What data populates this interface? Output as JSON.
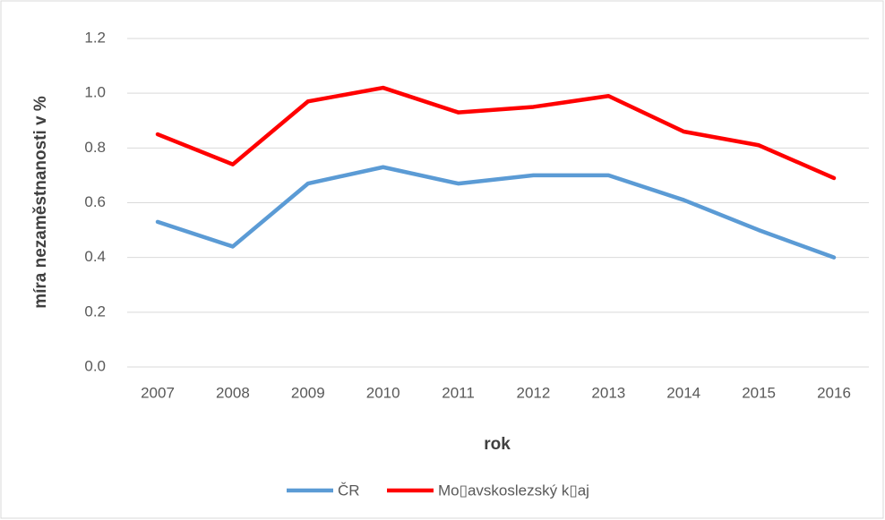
{
  "chart_data": {
    "type": "line",
    "categories": [
      "2007",
      "2008",
      "2009",
      "2010",
      "2011",
      "2012",
      "2013",
      "2014",
      "2015",
      "2016"
    ],
    "series": [
      {
        "name": "ČR",
        "color": "#5b9bd5",
        "values": [
          0.53,
          0.44,
          0.67,
          0.73,
          0.67,
          0.7,
          0.7,
          0.61,
          0.5,
          0.4
        ]
      },
      {
        "name": "Mo▯avskoslezský k▯aj",
        "color": "#ff0000",
        "values": [
          0.85,
          0.74,
          0.97,
          1.02,
          0.93,
          0.95,
          0.99,
          0.86,
          0.81,
          0.69
        ]
      }
    ],
    "xlabel": "rok",
    "ylabel": "míra nezaměstnanosti v %",
    "ylim": [
      0,
      1.2
    ],
    "yticks": [
      {
        "value": 0,
        "label": "0.0"
      },
      0.2,
      0.4,
      0.6,
      0.8,
      {
        "value": 1,
        "label": "1.0"
      },
      1.2
    ],
    "grid": true,
    "legend": "bottom"
  }
}
